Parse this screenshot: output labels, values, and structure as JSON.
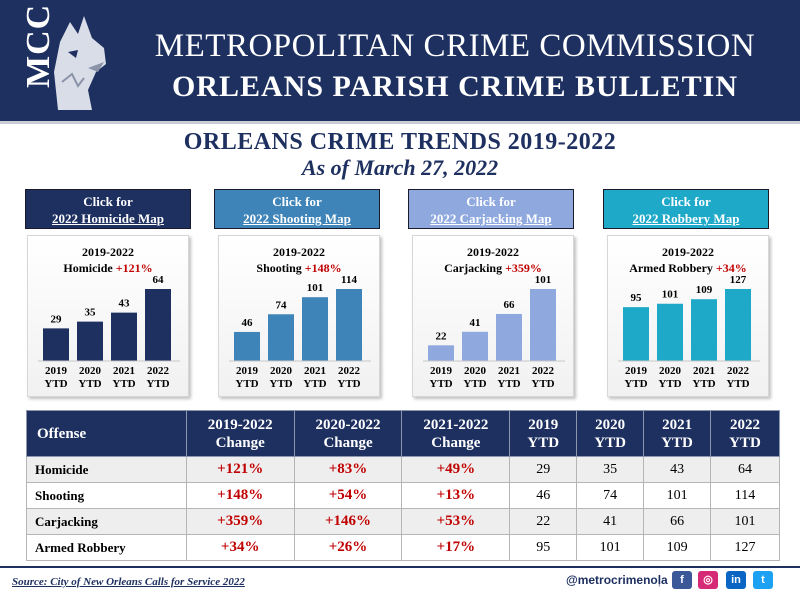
{
  "header": {
    "logo_text": "MCC",
    "title_line1": "METROPOLITAN CRIME COMMISSION",
    "title_line2": "ORLEANS PARISH CRIME BULLETIN"
  },
  "subtitle": {
    "title": "ORLEANS CRIME TRENDS 2019-2022",
    "date": "As of March 27, 2022"
  },
  "map_buttons": [
    {
      "line1": "Click for",
      "line2": "2022 Homicide Map",
      "color": "#1e3060"
    },
    {
      "line1": "Click for",
      "line2": "2022 Shooting Map",
      "color": "#3f84b8"
    },
    {
      "line1": "Click for",
      "line2": "2022 Carjacking Map",
      "color": "#8fa9df"
    },
    {
      "line1": "Click for",
      "line2": "2022 Robbery Map",
      "color": "#1fa9c9"
    }
  ],
  "chart_data": [
    {
      "type": "bar",
      "title_line1": "2019-2022",
      "label": "Homicide",
      "pct": "+121%",
      "color": "#1e3060",
      "categories": [
        "2019 YTD",
        "2020 YTD",
        "2021 YTD",
        "2022 YTD"
      ],
      "values": [
        29,
        35,
        43,
        64
      ]
    },
    {
      "type": "bar",
      "title_line1": "2019-2022",
      "label": "Shooting",
      "pct": "+148%",
      "color": "#3f84b8",
      "categories": [
        "2019 YTD",
        "2020 YTD",
        "2021 YTD",
        "2022 YTD"
      ],
      "values": [
        46,
        74,
        101,
        114
      ]
    },
    {
      "type": "bar",
      "title_line1": "2019-2022",
      "label": "Carjacking",
      "pct": "+359%",
      "color": "#8fa9df",
      "categories": [
        "2019 YTD",
        "2020 YTD",
        "2021 YTD",
        "2022 YTD"
      ],
      "values": [
        22,
        41,
        66,
        101
      ]
    },
    {
      "type": "bar",
      "title_line1": "2019-2022",
      "label": "Armed Robbery",
      "pct": "+34%",
      "color": "#1fa9c9",
      "categories": [
        "2019 YTD",
        "2020 YTD",
        "2021 YTD",
        "2022 YTD"
      ],
      "values": [
        95,
        101,
        109,
        127
      ]
    }
  ],
  "table": {
    "headers": [
      [
        "Offense"
      ],
      [
        "2019-2022",
        "Change"
      ],
      [
        "2020-2022",
        "Change"
      ],
      [
        "2021-2022",
        "Change"
      ],
      [
        "2019",
        "YTD"
      ],
      [
        "2020",
        "YTD"
      ],
      [
        "2021",
        "YTD"
      ],
      [
        "2022",
        "YTD"
      ]
    ],
    "rows": [
      {
        "offense": "Homicide",
        "c1": "+121%",
        "c2": "+83%",
        "c3": "+49%",
        "y2019": "29",
        "y2020": "35",
        "y2021": "43",
        "y2022": "64"
      },
      {
        "offense": "Shooting",
        "c1": "+148%",
        "c2": "+54%",
        "c3": "+13%",
        "y2019": "46",
        "y2020": "74",
        "y2021": "101",
        "y2022": "114"
      },
      {
        "offense": "Carjacking",
        "c1": "+359%",
        "c2": "+146%",
        "c3": "+53%",
        "y2019": "22",
        "y2020": "41",
        "y2021": "66",
        "y2022": "101"
      },
      {
        "offense": "Armed Robbery",
        "c1": "+34%",
        "c2": "+26%",
        "c3": "+17%",
        "y2019": "95",
        "y2020": "101",
        "y2021": "109",
        "y2022": "127"
      }
    ]
  },
  "footer": {
    "source": "Source:  City of New Orleans Calls for Service 2022",
    "handle": "@metrocrimenola",
    "separator": "|",
    "social": [
      {
        "icon": "facebook-icon",
        "glyph": "f",
        "color": "#3b5998"
      },
      {
        "icon": "instagram-icon",
        "glyph": "◎",
        "color": "#d62976"
      },
      {
        "icon": "linkedin-icon",
        "glyph": "in",
        "color": "#0a66c2"
      },
      {
        "icon": "twitter-icon",
        "glyph": "t",
        "color": "#1da1f2"
      }
    ]
  }
}
